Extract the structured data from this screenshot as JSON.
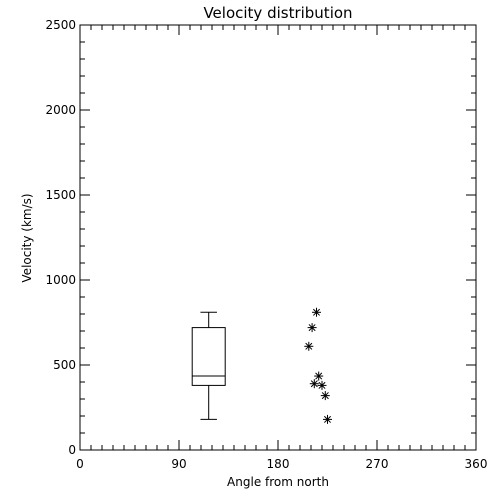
{
  "chart_data": {
    "type": "scatter",
    "title": "Velocity distribution",
    "xlabel": "Angle from north",
    "ylabel": "Velocity (km/s)",
    "xlim": [
      0,
      360
    ],
    "ylim": [
      0,
      2500
    ],
    "x_ticks": [
      0,
      90,
      180,
      270,
      360
    ],
    "y_ticks": [
      0,
      500,
      1000,
      1500,
      2000,
      2500
    ],
    "x_minor_step": 10,
    "y_minor_step": 100,
    "grid": false,
    "box": {
      "x_center": 117,
      "x_range": [
        102,
        132
      ],
      "min": 180,
      "q1": 380,
      "median": 435,
      "q3": 720,
      "max": 810
    },
    "points": [
      {
        "x": 215,
        "y": 810
      },
      {
        "x": 211,
        "y": 720
      },
      {
        "x": 208,
        "y": 610
      },
      {
        "x": 217,
        "y": 435
      },
      {
        "x": 213,
        "y": 390
      },
      {
        "x": 220,
        "y": 380
      },
      {
        "x": 223,
        "y": 320
      },
      {
        "x": 225,
        "y": 180
      }
    ]
  }
}
